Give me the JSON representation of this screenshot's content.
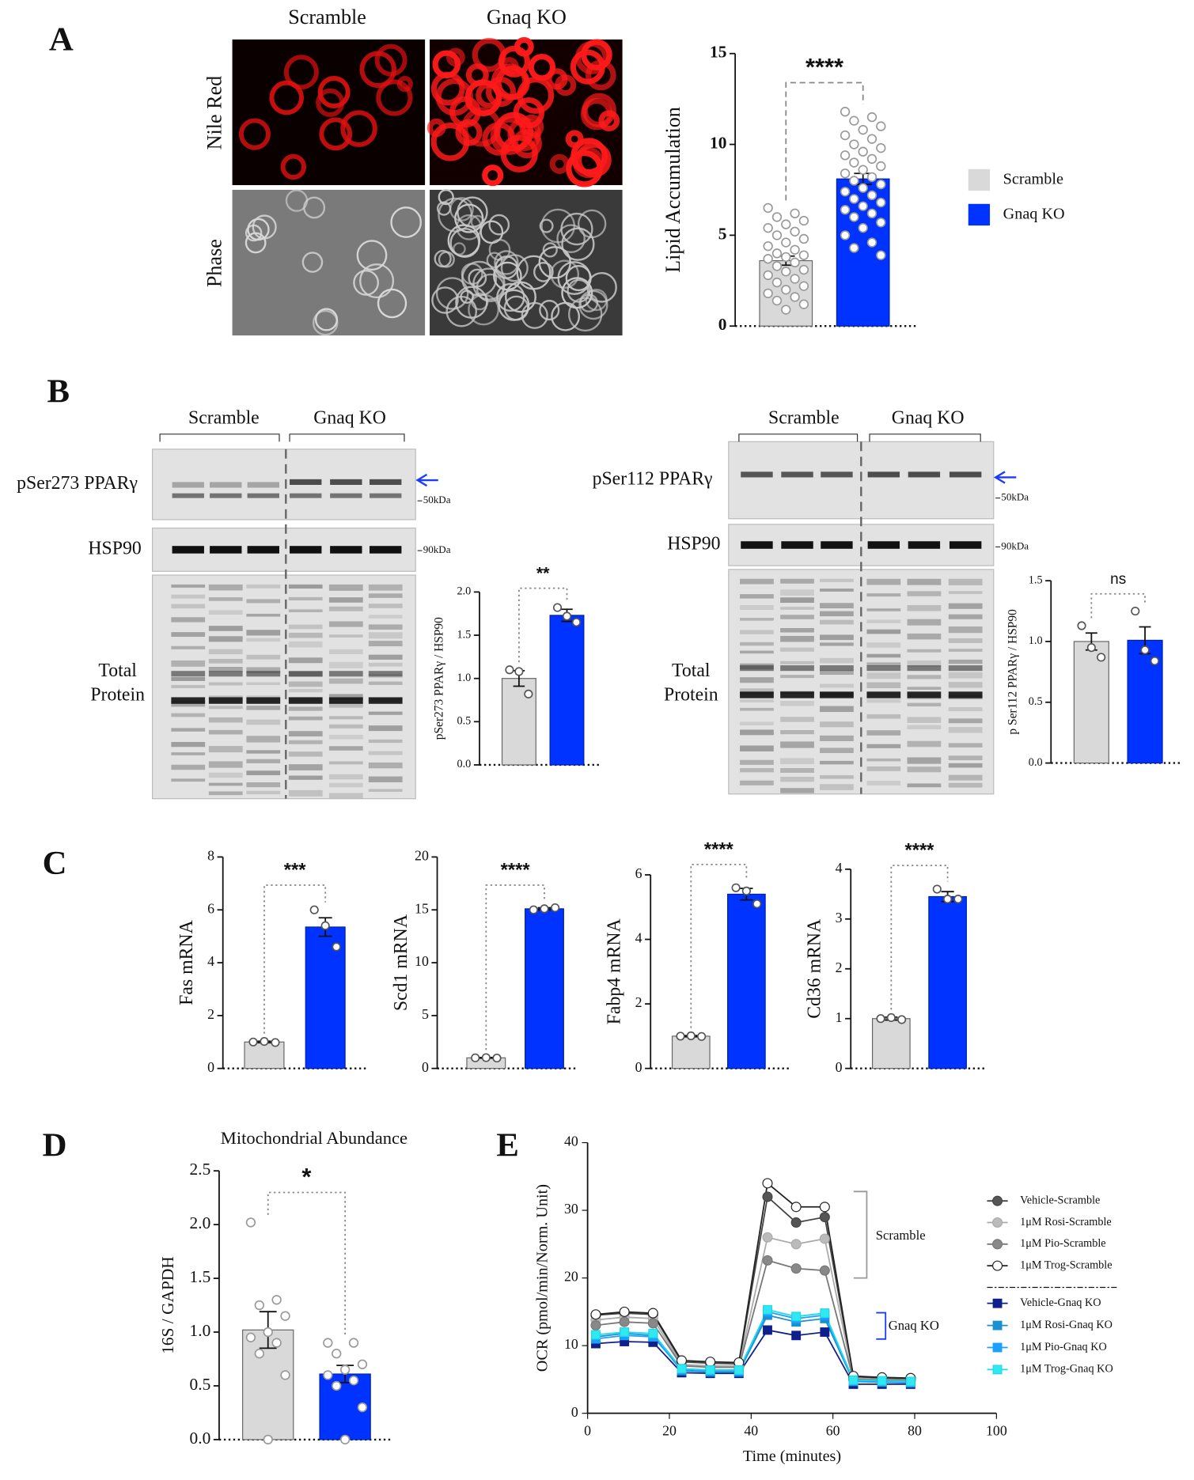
{
  "panel_letters": [
    "A",
    "B",
    "C",
    "D",
    "E"
  ],
  "panel_a": {
    "columns": [
      "Scramble",
      "Gnaq KO"
    ],
    "rows": [
      "Nile Red",
      "Phase"
    ]
  },
  "panel_b": [
    {
      "groups": [
        "Scramble",
        "Gnaq KO"
      ],
      "rows": [
        "pSer273 PPARγ",
        "HSP90"
      ],
      "total_protein": [
        "Total",
        "Protein"
      ],
      "markers": [
        "50kDa",
        "90kDa"
      ]
    },
    {
      "groups": [
        "Scramble",
        "Gnaq KO"
      ],
      "rows": [
        "pSer112 PPARγ",
        "HSP90"
      ],
      "total_protein": [
        "Total",
        "Protein"
      ],
      "markers": [
        "50kDa",
        "90kDa"
      ]
    }
  ],
  "chart_data": [
    {
      "type": "bar",
      "y_label": "Lipid  Accumulation",
      "categories": [
        "Scramble",
        "Gnaq KO"
      ],
      "legend": "right",
      "colors": [
        "#d9d9d9",
        "#0033ff"
      ],
      "values": [
        3.6,
        8.1
      ],
      "errors": [
        0.25,
        0.3
      ],
      "points": [
        [
          6.5,
          6.2,
          6.0,
          5.8,
          5.6,
          5.4,
          5.2,
          5.0,
          4.8,
          4.6,
          4.4,
          4.2,
          4.0,
          3.9,
          3.8,
          3.7,
          3.5,
          3.3,
          3.1,
          3.0,
          2.8,
          2.6,
          2.4,
          2.2,
          2.0,
          1.8,
          1.6,
          1.4,
          1.2,
          0.9
        ],
        [
          11.8,
          11.5,
          11.3,
          11.0,
          10.8,
          10.5,
          10.3,
          10.0,
          9.8,
          9.6,
          9.4,
          9.2,
          9.0,
          8.8,
          8.6,
          8.4,
          8.2,
          8.0,
          7.8,
          7.6,
          7.4,
          7.2,
          7.0,
          6.8,
          6.6,
          6.4,
          6.2,
          6.0,
          5.7,
          5.4,
          5.0,
          4.6,
          4.3,
          3.9
        ]
      ],
      "significance": "****",
      "ylim": [
        0,
        15
      ],
      "yticks": [
        0,
        5,
        10,
        15
      ]
    },
    {
      "type": "bar",
      "y_label": "pSer273 PPARγ / HSP90",
      "colors": [
        "#d9d9d9",
        "#0033ff"
      ],
      "values": [
        1.0,
        1.73
      ],
      "errors": [
        0.09,
        0.07
      ],
      "points": [
        [
          1.1,
          1.08,
          0.82
        ],
        [
          1.82,
          1.72,
          1.65
        ]
      ],
      "significance": "**",
      "ylim": [
        0,
        2
      ],
      "yticks": [
        {
          "value": 0,
          "label": "0.0"
        },
        0.5,
        {
          "value": 1,
          "label": "1.0"
        },
        1.5,
        {
          "value": 2,
          "label": "2.0"
        }
      ]
    },
    {
      "type": "bar",
      "y_label": "p Ser112 PPARγ / HSP90",
      "colors": [
        "#d9d9d9",
        "#0033ff"
      ],
      "values": [
        1.0,
        1.01
      ],
      "errors": [
        0.07,
        0.11
      ],
      "points": [
        [
          1.13,
          0.95,
          0.87
        ],
        [
          1.25,
          0.93,
          0.84
        ]
      ],
      "significance": "ns",
      "ylim": [
        0,
        1.5
      ],
      "yticks": [
        {
          "value": 0,
          "label": "0.0"
        },
        0.5,
        {
          "value": 1,
          "label": "1.0"
        },
        1.5
      ]
    },
    {
      "type": "bar",
      "y_label": "Fas mRNA",
      "colors": [
        "#d9d9d9",
        "#0033ff"
      ],
      "values": [
        1.0,
        5.35
      ],
      "errors": [
        0.03,
        0.35
      ],
      "points": [
        [
          1.0,
          1.02,
          0.98
        ],
        [
          6.0,
          5.4,
          4.6
        ]
      ],
      "significance": "***",
      "ylim": [
        0,
        8
      ],
      "yticks": [
        0,
        2,
        4,
        6,
        8
      ]
    },
    {
      "type": "bar",
      "y_label": "Scd1 mRNA",
      "colors": [
        "#d9d9d9",
        "#0033ff"
      ],
      "values": [
        1.0,
        15.1
      ],
      "errors": [
        0.03,
        0.1
      ],
      "points": [
        [
          1.0,
          1.02,
          0.98
        ],
        [
          15.0,
          15.1,
          15.2
        ]
      ],
      "significance": "****",
      "ylim": [
        0,
        20
      ],
      "yticks": [
        0,
        5,
        10,
        15,
        20
      ]
    },
    {
      "type": "bar",
      "y_label": "Fabp4 mRNA",
      "colors": [
        "#d9d9d9",
        "#0033ff"
      ],
      "values": [
        1.0,
        5.4
      ],
      "errors": [
        0.02,
        0.18
      ],
      "points": [
        [
          1.0,
          1.01,
          0.99
        ],
        [
          5.6,
          5.5,
          5.1
        ]
      ],
      "significance": "****",
      "ylim": [
        0,
        6
      ],
      "yticks": [
        0,
        2,
        4,
        6
      ]
    },
    {
      "type": "bar",
      "y_label": "Cd36 mRNA",
      "colors": [
        "#d9d9d9",
        "#0033ff"
      ],
      "values": [
        1.0,
        3.45
      ],
      "errors": [
        0.03,
        0.1
      ],
      "points": [
        [
          1.0,
          1.02,
          0.98
        ],
        [
          3.6,
          3.4,
          3.4
        ]
      ],
      "significance": "****",
      "ylim": [
        0,
        4
      ],
      "yticks": [
        0,
        1,
        2,
        3,
        4
      ]
    },
    {
      "type": "bar",
      "title": "Mitochondrial Abundance",
      "y_label": "16S / GAPDH",
      "colors": [
        "#d9d9d9",
        "#0033ff"
      ],
      "values": [
        1.02,
        0.61
      ],
      "errors": [
        0.17,
        0.08
      ],
      "points": [
        [
          2.02,
          1.3,
          1.25,
          1.15,
          1.0,
          0.95,
          0.9,
          0.8,
          0.6,
          0.0
        ],
        [
          0.9,
          0.9,
          0.8,
          0.7,
          0.65,
          0.6,
          0.55,
          0.5,
          0.3,
          0.0
        ]
      ],
      "significance": "*",
      "ylim": [
        0,
        2.5
      ],
      "yticks": [
        {
          "value": 0,
          "label": "0.0"
        },
        0.5,
        {
          "value": 1,
          "label": "1.0"
        },
        1.5,
        {
          "value": 2,
          "label": "2.0"
        },
        2.5
      ]
    },
    {
      "type": "line",
      "x_label": "Time (minutes)",
      "y_label": "OCR (pmol/min/Norm. Unit)",
      "x": [
        2,
        9,
        16,
        23,
        30,
        37,
        44,
        51,
        58,
        65,
        72,
        79
      ],
      "xlim": [
        0,
        100
      ],
      "xticks": [
        0,
        20,
        40,
        60,
        80,
        100
      ],
      "ylim": [
        0,
        40
      ],
      "yticks": [
        0,
        10,
        20,
        30,
        40
      ],
      "annotations": [
        "Scramble",
        "Gnaq KO"
      ],
      "series": [
        {
          "name": "Vehicle-Scramble",
          "color": "#444444",
          "fill": "#555555",
          "marker": "circle",
          "values": [
            14.5,
            14.8,
            14.6,
            7.6,
            7.4,
            7.3,
            32.0,
            28.2,
            29.0,
            5.4,
            5.2,
            5.1
          ]
        },
        {
          "name": "1μM Rosi-Scramble",
          "color": "#aaaaaa",
          "fill": "#bbbbbb",
          "marker": "circle",
          "values": [
            13.8,
            14.2,
            14.0,
            7.2,
            7.0,
            7.0,
            26.0,
            25.0,
            25.8,
            5.2,
            5.0,
            4.9
          ]
        },
        {
          "name": "1μM Pio-Scramble",
          "color": "#777777",
          "fill": "#888888",
          "marker": "circle",
          "values": [
            13.0,
            13.5,
            13.3,
            7.0,
            6.8,
            6.8,
            22.6,
            21.4,
            21.1,
            5.0,
            4.9,
            4.8
          ]
        },
        {
          "name": "1μM Trog-Scramble",
          "color": "#222222",
          "fill": "#ffffff",
          "marker": "circle",
          "values": [
            14.6,
            15.0,
            14.8,
            7.8,
            7.6,
            7.5,
            34.0,
            30.5,
            30.5,
            5.5,
            5.3,
            5.2
          ]
        },
        {
          "name": "Vehicle-Gnaq KO",
          "color": "#10208a",
          "fill": "#10208a",
          "marker": "square",
          "values": [
            10.3,
            10.6,
            10.5,
            6.0,
            5.9,
            5.9,
            12.3,
            11.5,
            12.0,
            4.3,
            4.3,
            4.3
          ]
        },
        {
          "name": "1μM Rosi-Gnaq KO",
          "color": "#1a90d0",
          "fill": "#1a90d0",
          "marker": "square",
          "values": [
            11.3,
            11.8,
            11.5,
            6.3,
            6.1,
            6.1,
            14.5,
            13.5,
            14.0,
            4.7,
            4.6,
            4.5
          ]
        },
        {
          "name": "1μM Pio-Gnaq KO",
          "color": "#1aa0ff",
          "fill": "#1aa0ff",
          "marker": "square",
          "values": [
            11.0,
            11.5,
            11.3,
            6.5,
            6.3,
            6.3,
            15.0,
            14.0,
            14.5,
            4.8,
            4.7,
            4.6
          ]
        },
        {
          "name": "1μM Trog-Gnaq KO",
          "color": "#20d8e8",
          "fill": "#30e8f0",
          "marker": "square",
          "values": [
            11.6,
            12.0,
            11.8,
            6.6,
            6.4,
            6.4,
            15.3,
            14.3,
            14.8,
            4.9,
            4.8,
            4.7
          ]
        }
      ]
    }
  ]
}
